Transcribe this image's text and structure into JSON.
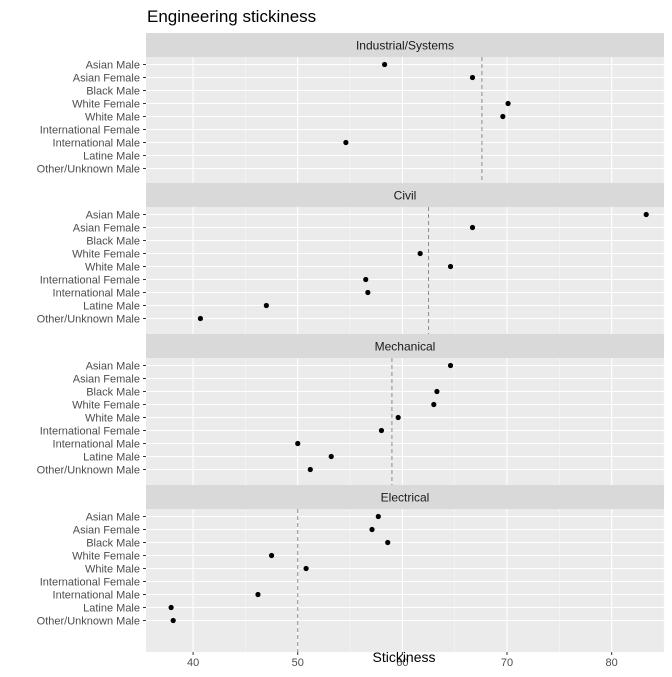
{
  "chart_data": {
    "type": "scatter",
    "title": "Engineering stickiness",
    "xlabel": "Stickiness",
    "ylabel": "",
    "xlim": [
      35.5,
      85.0
    ],
    "xticks": [
      40,
      50,
      60,
      70,
      80
    ],
    "grid": true,
    "categories": [
      "Asian Male",
      "Asian Female",
      "Black Male",
      "White Female",
      "White Male",
      "International Female",
      "International Male",
      "Latine Male",
      "Other/Unknown Male"
    ],
    "panels": [
      {
        "name": "Industrial/Systems",
        "reference_line": 67.6,
        "values": [
          58.3,
          66.7,
          null,
          70.1,
          69.6,
          null,
          54.6,
          null,
          null
        ]
      },
      {
        "name": "Civil",
        "reference_line": 62.5,
        "values": [
          83.3,
          66.7,
          null,
          61.7,
          64.6,
          56.5,
          56.7,
          47.0,
          40.7
        ]
      },
      {
        "name": "Mechanical",
        "reference_line": 59.0,
        "values": [
          64.6,
          null,
          63.3,
          63.0,
          59.6,
          58.0,
          50.0,
          53.2,
          51.2
        ]
      },
      {
        "name": "Electrical",
        "reference_line": 50.0,
        "values": [
          57.7,
          57.1,
          58.6,
          47.5,
          50.8,
          null,
          46.2,
          37.9,
          38.1
        ]
      }
    ]
  }
}
